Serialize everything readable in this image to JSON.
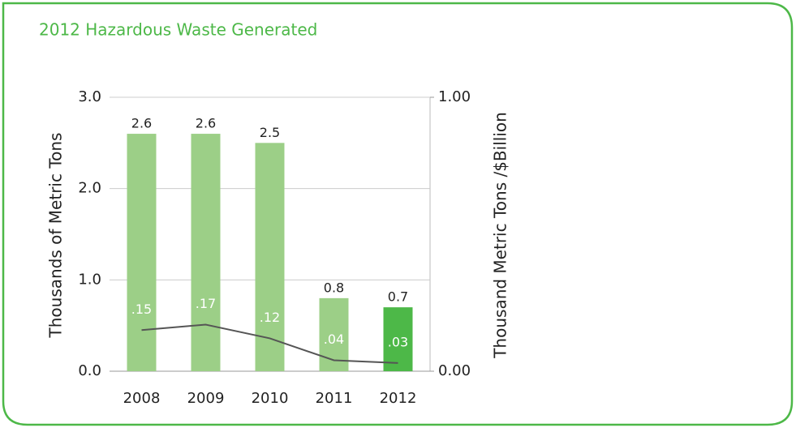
{
  "chart_data": {
    "type": "bar_line",
    "title": "2012 Hazardous Waste Generated",
    "y_label": "Thousands of Metric Tons",
    "y2_label": "Thousand Metric Tons /$Billion",
    "categories": [
      "2008",
      "2009",
      "2010",
      "2011",
      "2012"
    ],
    "series": [
      {
        "type": "bar",
        "colors": [
          "#9ccf87",
          "#9ccf87",
          "#9ccf87",
          "#9ccf87",
          "#4db848"
        ],
        "values": [
          2.6,
          2.6,
          2.5,
          0.8,
          0.7
        ]
      },
      {
        "type": "line",
        "axis": "y2",
        "color": "#555555",
        "values": [
          0.15,
          0.17,
          0.12,
          0.04,
          0.03
        ],
        "value_labels": [
          ".15",
          ".17",
          ".12",
          ".04",
          ".03"
        ]
      }
    ],
    "ylim": [
      0,
      3
    ],
    "yticks": [
      {
        "value": 0,
        "label": "0.0"
      },
      {
        "value": 1,
        "label": "1.0"
      },
      {
        "value": 2,
        "label": "2.0"
      },
      {
        "value": 3,
        "label": "3.0"
      }
    ],
    "y2lim": [
      0,
      1
    ],
    "y2ticks": [
      {
        "value": 0,
        "label": "0.00"
      },
      {
        "value": 1,
        "label": "1.00"
      }
    ],
    "grid": true
  }
}
